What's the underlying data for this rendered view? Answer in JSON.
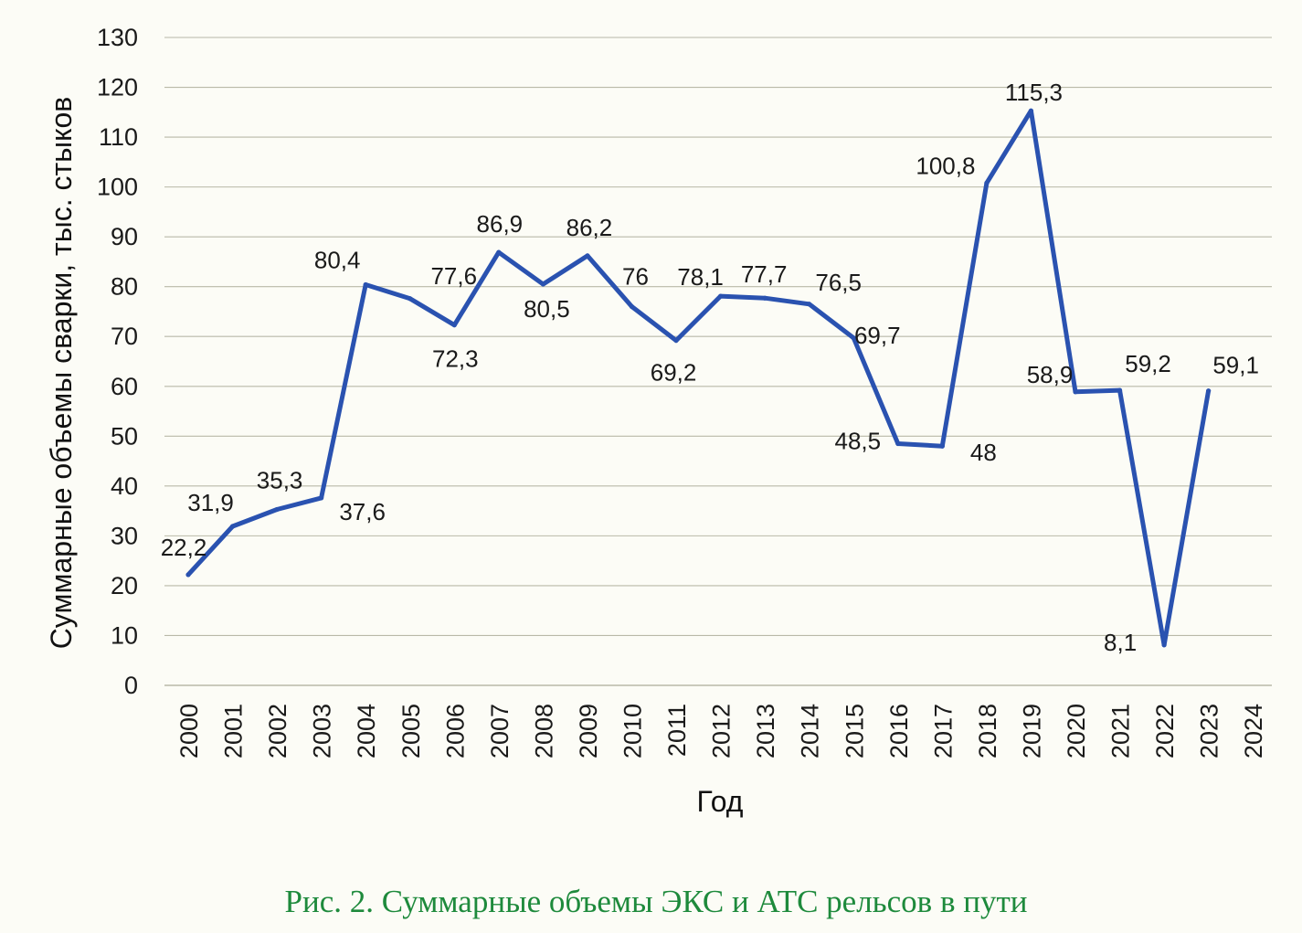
{
  "chart_data": {
    "type": "line",
    "ylabel": "Суммарные объемы сварки, тыс. стыков",
    "xlabel": "Год",
    "ylim": [
      0,
      130
    ],
    "y_ticks": [
      "0",
      "10",
      "20",
      "30",
      "40",
      "50",
      "60",
      "70",
      "80",
      "90",
      "100",
      "110",
      "120",
      "130"
    ],
    "categories": [
      "2000",
      "2001",
      "2002",
      "2003",
      "2004",
      "2005",
      "2006",
      "2007",
      "2008",
      "2009",
      "2010",
      "2011",
      "2012",
      "2013",
      "2014",
      "2015",
      "2016",
      "2017",
      "2018",
      "2019",
      "2020",
      "2021",
      "2022",
      "2023",
      "2024"
    ],
    "values": [
      22.2,
      31.9,
      35.3,
      37.6,
      80.4,
      77.6,
      72.3,
      86.9,
      80.5,
      86.2,
      76,
      69.2,
      78.1,
      77.7,
      76.5,
      69.7,
      48.5,
      48,
      100.8,
      115.3,
      58.9,
      59.2,
      8.1,
      59.1,
      null
    ],
    "data_labels": [
      "22,2",
      "31,9",
      "35,3",
      "37,6",
      "80,4",
      "77,6",
      "72,3",
      "86,9",
      "80,5",
      "86,2",
      "76",
      "69,2",
      "78,1",
      "77,7",
      "76,5",
      "69,7",
      "48,5",
      "48",
      "100,8",
      "115,3",
      "58,9",
      "59,2",
      "8,1",
      "59,1",
      ""
    ],
    "grid": true,
    "line_color": "#2a52b0",
    "grid_color": "#b9b9a8"
  },
  "caption": {
    "text": "Рис. 2. Суммарные объемы ЭКС и АТС рельсов в пути",
    "color": "#1e8a3c"
  }
}
